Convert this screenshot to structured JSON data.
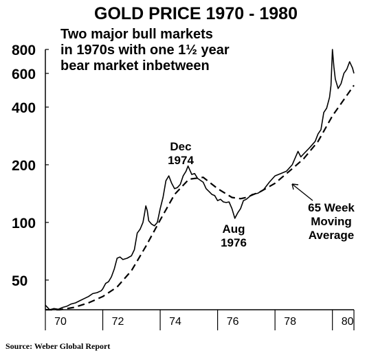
{
  "chart_data": {
    "type": "line",
    "title": "GOLD PRICE 1970 - 1980",
    "subtitle_lines": [
      "Two major bull markets",
      "in 1970s with one 1½ year",
      "bear market inbetween"
    ],
    "y_scale": "log",
    "ylim": [
      35,
      800
    ],
    "y_ticks": [
      50,
      100,
      200,
      400,
      600,
      800
    ],
    "y_tick_labels": [
      "50",
      "100",
      "200",
      "400",
      "600",
      "800"
    ],
    "xlim": [
      1970,
      1980.75
    ],
    "x_ticks": [
      1970,
      1972,
      1974,
      1976,
      1978,
      1980
    ],
    "x_tick_labels": [
      "70",
      "72",
      "74",
      "76",
      "78",
      "80"
    ],
    "grid": false,
    "series": [
      {
        "style": "solid",
        "points": [
          [
            1970.0,
            37
          ],
          [
            1970.15,
            35
          ],
          [
            1970.3,
            35.5
          ],
          [
            1970.45,
            35.2
          ],
          [
            1970.6,
            36
          ],
          [
            1970.75,
            36.5
          ],
          [
            1970.9,
            37.5
          ],
          [
            1971.05,
            38
          ],
          [
            1971.2,
            39
          ],
          [
            1971.35,
            40
          ],
          [
            1971.5,
            41
          ],
          [
            1971.65,
            42.5
          ],
          [
            1971.8,
            43
          ],
          [
            1971.95,
            44
          ],
          [
            1972.0,
            45
          ],
          [
            1972.1,
            48
          ],
          [
            1972.2,
            49
          ],
          [
            1972.3,
            52
          ],
          [
            1972.4,
            57
          ],
          [
            1972.5,
            65
          ],
          [
            1972.6,
            66
          ],
          [
            1972.7,
            64
          ],
          [
            1972.85,
            65
          ],
          [
            1973.0,
            67
          ],
          [
            1973.1,
            72
          ],
          [
            1973.2,
            88
          ],
          [
            1973.3,
            92
          ],
          [
            1973.4,
            100
          ],
          [
            1973.45,
            110
          ],
          [
            1973.5,
            122
          ],
          [
            1973.55,
            115
          ],
          [
            1973.6,
            102
          ],
          [
            1973.7,
            98
          ],
          [
            1973.8,
            96
          ],
          [
            1973.9,
            100
          ],
          [
            1974.0,
            118
          ],
          [
            1974.1,
            135
          ],
          [
            1974.2,
            165
          ],
          [
            1974.3,
            175
          ],
          [
            1974.4,
            160
          ],
          [
            1974.5,
            150
          ],
          [
            1974.6,
            152
          ],
          [
            1974.7,
            158
          ],
          [
            1974.8,
            175
          ],
          [
            1974.9,
            185
          ],
          [
            1974.97,
            197
          ],
          [
            1975.1,
            178
          ],
          [
            1975.2,
            180
          ],
          [
            1975.3,
            170
          ],
          [
            1975.4,
            166
          ],
          [
            1975.5,
            162
          ],
          [
            1975.6,
            150
          ],
          [
            1975.7,
            145
          ],
          [
            1975.8,
            140
          ],
          [
            1975.9,
            138
          ],
          [
            1976.0,
            130
          ],
          [
            1976.1,
            132
          ],
          [
            1976.2,
            128
          ],
          [
            1976.3,
            127
          ],
          [
            1976.4,
            128
          ],
          [
            1976.5,
            118
          ],
          [
            1976.6,
            105
          ],
          [
            1976.7,
            112
          ],
          [
            1976.8,
            118
          ],
          [
            1976.9,
            130
          ],
          [
            1977.0,
            132
          ],
          [
            1977.2,
            140
          ],
          [
            1977.4,
            142
          ],
          [
            1977.6,
            148
          ],
          [
            1977.8,
            162
          ],
          [
            1978.0,
            175
          ],
          [
            1978.2,
            180
          ],
          [
            1978.4,
            185
          ],
          [
            1978.6,
            200
          ],
          [
            1978.8,
            235
          ],
          [
            1978.9,
            220
          ],
          [
            1979.0,
            228
          ],
          [
            1979.2,
            245
          ],
          [
            1979.4,
            265
          ],
          [
            1979.5,
            290
          ],
          [
            1979.6,
            305
          ],
          [
            1979.7,
            375
          ],
          [
            1979.8,
            395
          ],
          [
            1979.9,
            450
          ],
          [
            1979.95,
            520
          ],
          [
            1980.0,
            800
          ],
          [
            1980.05,
            650
          ],
          [
            1980.1,
            560
          ],
          [
            1980.2,
            500
          ],
          [
            1980.3,
            530
          ],
          [
            1980.4,
            600
          ],
          [
            1980.5,
            630
          ],
          [
            1980.6,
            690
          ],
          [
            1980.7,
            640
          ],
          [
            1980.75,
            600
          ]
        ]
      },
      {
        "name": "65 Week Moving Average",
        "style": "dashed",
        "points": [
          [
            1970.0,
            35
          ],
          [
            1970.5,
            35
          ],
          [
            1971.0,
            36
          ],
          [
            1971.5,
            38
          ],
          [
            1972.0,
            41
          ],
          [
            1972.5,
            46
          ],
          [
            1973.0,
            56
          ],
          [
            1973.5,
            75
          ],
          [
            1974.0,
            103
          ],
          [
            1974.5,
            140
          ],
          [
            1975.0,
            168
          ],
          [
            1975.5,
            172
          ],
          [
            1976.0,
            150
          ],
          [
            1976.5,
            135
          ],
          [
            1976.8,
            133
          ],
          [
            1977.0,
            135
          ],
          [
            1977.5,
            145
          ],
          [
            1978.0,
            160
          ],
          [
            1978.5,
            185
          ],
          [
            1979.0,
            215
          ],
          [
            1979.5,
            265
          ],
          [
            1980.0,
            360
          ],
          [
            1980.5,
            460
          ],
          [
            1980.75,
            520
          ]
        ]
      }
    ],
    "annotations": [
      {
        "lines": [
          "Dec",
          "1974"
        ],
        "x": 1974.8,
        "y": 197
      },
      {
        "lines": [
          "Aug",
          "1976"
        ],
        "x": 1976.6,
        "y": 105
      },
      {
        "lines": [
          "65 Week",
          "Moving",
          "Average"
        ],
        "x": 1978.9,
        "y": 195
      }
    ]
  },
  "source": "Source: Weber Global Report"
}
